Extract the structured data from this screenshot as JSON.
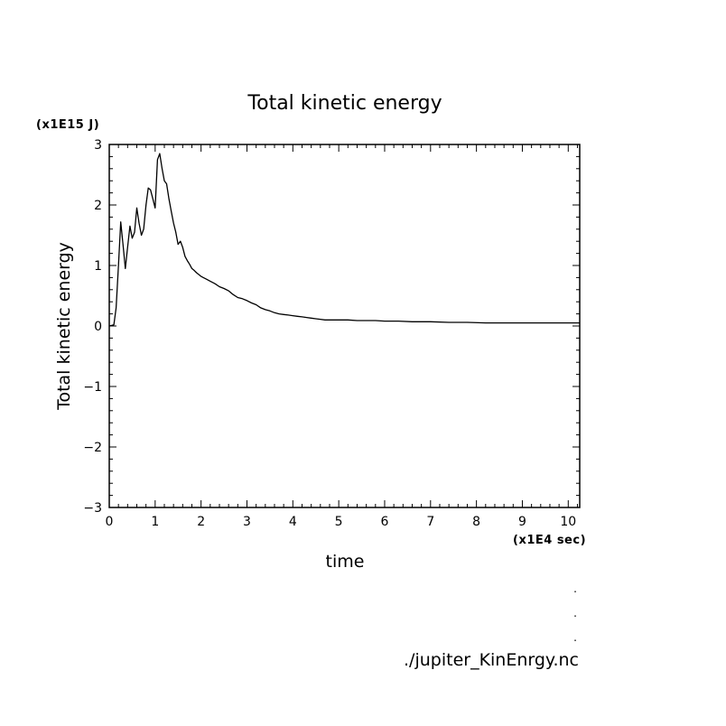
{
  "chart_data": {
    "type": "line",
    "title": "Total kinetic energy",
    "xlabel": "time",
    "ylabel": "Total kinetic energy",
    "x_scale_note": "(x1E4 sec)",
    "y_scale_note": "(x1E15 J)",
    "xlim": [
      0,
      10.25
    ],
    "ylim": [
      -3,
      3
    ],
    "x_ticks": [
      0,
      1,
      2,
      3,
      4,
      5,
      6,
      7,
      8,
      9,
      10
    ],
    "x_tick_labels": [
      "0",
      "1",
      "2",
      "3",
      "4",
      "5",
      "6",
      "7",
      "8",
      "9",
      "10"
    ],
    "y_ticks": [
      -3,
      -2,
      -1,
      0,
      1,
      2,
      3
    ],
    "y_tick_labels": [
      "−3",
      "−2",
      "−1",
      "0",
      "1",
      "2",
      "3"
    ],
    "grid": false,
    "line_color": "#000000",
    "series": [
      {
        "x": [
          0,
          0.1,
          0.15,
          0.2,
          0.25,
          0.3,
          0.35,
          0.4,
          0.45,
          0.5,
          0.55,
          0.6,
          0.65,
          0.7,
          0.75,
          0.8,
          0.85,
          0.9,
          0.95,
          1.0,
          1.05,
          1.1,
          1.15,
          1.2,
          1.25,
          1.3,
          1.35,
          1.4,
          1.45,
          1.5,
          1.55,
          1.6,
          1.65,
          1.7,
          1.75,
          1.8,
          1.85,
          1.9,
          1.95,
          2.0,
          2.05,
          2.1,
          2.15,
          2.2,
          2.3,
          2.4,
          2.5,
          2.6,
          2.7,
          2.8,
          2.9,
          3.0,
          3.1,
          3.2,
          3.3,
          3.4,
          3.5,
          3.6,
          3.7,
          3.8,
          3.9,
          4.0,
          4.1,
          4.2,
          4.3,
          4.4,
          4.5,
          4.6,
          4.7,
          4.8,
          5.0,
          5.2,
          5.4,
          5.6,
          5.8,
          6.0,
          6.3,
          6.6,
          7.0,
          7.4,
          7.8,
          8.2,
          8.6,
          9.0,
          9.4,
          9.8,
          10.25
        ],
        "y": [
          0.0,
          0.02,
          0.3,
          1.0,
          1.72,
          1.35,
          0.95,
          1.3,
          1.65,
          1.45,
          1.55,
          1.95,
          1.7,
          1.5,
          1.6,
          2.0,
          2.28,
          2.25,
          2.1,
          1.95,
          2.75,
          2.85,
          2.6,
          2.4,
          2.35,
          2.1,
          1.9,
          1.7,
          1.55,
          1.35,
          1.4,
          1.3,
          1.15,
          1.08,
          1.02,
          0.95,
          0.92,
          0.88,
          0.85,
          0.82,
          0.8,
          0.78,
          0.76,
          0.74,
          0.7,
          0.65,
          0.62,
          0.58,
          0.52,
          0.47,
          0.45,
          0.42,
          0.38,
          0.35,
          0.3,
          0.27,
          0.25,
          0.22,
          0.2,
          0.19,
          0.18,
          0.17,
          0.16,
          0.15,
          0.14,
          0.13,
          0.12,
          0.11,
          0.1,
          0.1,
          0.1,
          0.1,
          0.09,
          0.09,
          0.09,
          0.08,
          0.08,
          0.07,
          0.07,
          0.06,
          0.06,
          0.05,
          0.05,
          0.05,
          0.05,
          0.05,
          0.05
        ]
      }
    ]
  },
  "footer": {
    "dots": [
      ".",
      ".",
      "."
    ],
    "source": "./jupiter_KinEnrgy.nc"
  }
}
